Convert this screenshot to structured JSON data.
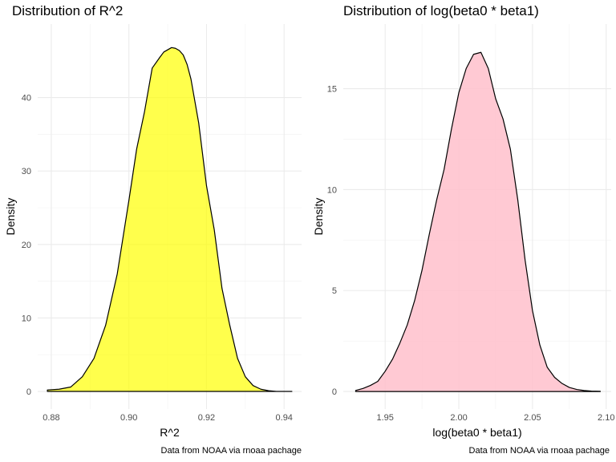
{
  "chart_data": [
    {
      "type": "area",
      "title": "Distribution of R^2",
      "xlabel": "R^2",
      "ylabel": "Density",
      "caption": "Data from NOAA via rnoaa pachage",
      "fill_color": "#FFFF00",
      "fill_opacity": 0.7,
      "line_color": "#000000",
      "xlim": [
        0.8765,
        0.9445
      ],
      "ylim": [
        -2.4,
        50
      ],
      "x_ticks": [
        0.88,
        0.9,
        0.92,
        0.94
      ],
      "x_tick_labels": [
        "0.88",
        "0.90",
        "0.92",
        "0.94"
      ],
      "y_ticks": [
        0,
        10,
        20,
        30,
        40
      ],
      "y_tick_labels": [
        "0",
        "10",
        "20",
        "30",
        "40"
      ],
      "grid": true,
      "x": [
        0.879,
        0.882,
        0.885,
        0.888,
        0.891,
        0.894,
        0.897,
        0.9,
        0.902,
        0.904,
        0.906,
        0.908,
        0.909,
        0.91,
        0.911,
        0.912,
        0.913,
        0.914,
        0.915,
        0.916,
        0.918,
        0.92,
        0.922,
        0.924,
        0.926,
        0.928,
        0.93,
        0.932,
        0.934,
        0.936,
        0.938,
        0.94,
        0.942
      ],
      "y": [
        0.2,
        0.3,
        0.6,
        2.0,
        4.5,
        9.0,
        16.0,
        26.0,
        33.0,
        38.0,
        44.0,
        45.5,
        46.2,
        46.5,
        46.8,
        46.7,
        46.4,
        45.8,
        44.5,
        42.5,
        36.5,
        28.0,
        22.0,
        14.0,
        9.0,
        4.5,
        2.0,
        0.8,
        0.3,
        0.1,
        0.0,
        0.0,
        0.0
      ]
    },
    {
      "type": "area",
      "title": "Distribution of log(beta0 * beta1)",
      "xlabel": "log(beta0 * beta1)",
      "ylabel": "Density",
      "caption": "Data from NOAA via rnoaa pachage",
      "fill_color": "#FFC0CB",
      "fill_opacity": 0.85,
      "line_color": "#000000",
      "xlim": [
        1.9216,
        2.1034
      ],
      "ylim": [
        -0.87,
        18.2
      ],
      "x_ticks": [
        1.95,
        2.0,
        2.05,
        2.1
      ],
      "x_tick_labels": [
        "1.95",
        "2.00",
        "2.05",
        "2.10"
      ],
      "y_ticks": [
        0,
        5,
        10,
        15
      ],
      "y_tick_labels": [
        "0",
        "5",
        "10",
        "15"
      ],
      "grid": true,
      "x": [
        1.93,
        1.935,
        1.94,
        1.945,
        1.95,
        1.955,
        1.96,
        1.965,
        1.97,
        1.975,
        1.98,
        1.985,
        1.99,
        1.995,
        2.0,
        2.005,
        2.01,
        2.015,
        2.02,
        2.025,
        2.03,
        2.035,
        2.04,
        2.045,
        2.05,
        2.055,
        2.06,
        2.065,
        2.07,
        2.075,
        2.08,
        2.085,
        2.09,
        2.096
      ],
      "y": [
        0.05,
        0.15,
        0.3,
        0.5,
        1.0,
        1.6,
        2.4,
        3.3,
        4.5,
        6.0,
        7.8,
        9.5,
        11.0,
        13.0,
        14.8,
        16.0,
        16.7,
        16.8,
        16.0,
        14.5,
        13.5,
        12.0,
        9.5,
        6.5,
        4.0,
        2.3,
        1.2,
        0.7,
        0.4,
        0.2,
        0.1,
        0.05,
        0.02,
        0.01
      ]
    }
  ]
}
